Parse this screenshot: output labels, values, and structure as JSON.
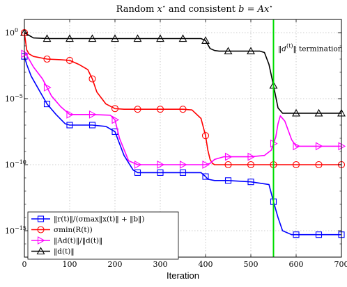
{
  "chart_data": {
    "type": "line",
    "title": "Random x* and consistent b = Ax*",
    "xlabel": "Iteration",
    "ylabel": "",
    "xlim": [
      0,
      700
    ],
    "ylim_log10": [
      -17,
      1
    ],
    "y_scale": "log",
    "grid": true,
    "legend_position": "bottom-left",
    "x_ticks": [
      0,
      100,
      200,
      300,
      400,
      500,
      600,
      700
    ],
    "x_tick_labels": [
      "0",
      "100",
      "200",
      "300",
      "400",
      "500",
      "600",
      "700"
    ],
    "y_ticks_log10": [
      0,
      -5,
      -10,
      -15
    ],
    "y_tick_labels": [
      "10^0",
      "10^-5",
      "10^-10",
      "10^-15"
    ],
    "vertical_line": {
      "x": 550,
      "color": "#00dd00"
    },
    "annotation": {
      "text": "‖d(t)‖ termination",
      "x": 560,
      "y_log10": -1.4
    },
    "series": [
      {
        "name": "‖r(t)‖/(σmax‖x(t)‖ + ‖b‖)",
        "color": "#0000ff",
        "marker": "square",
        "x": [
          0,
          5,
          15,
          30,
          50,
          70,
          90,
          100,
          150,
          180,
          200,
          220,
          240,
          250,
          300,
          350,
          390,
          400,
          405,
          420,
          450,
          500,
          540,
          550,
          560,
          570,
          590,
          600,
          650,
          700
        ],
        "y_log10": [
          -1.8,
          -2.4,
          -3.3,
          -4.2,
          -5.4,
          -6.2,
          -6.9,
          -7.0,
          -7.0,
          -7.1,
          -7.5,
          -9.3,
          -10.4,
          -10.6,
          -10.6,
          -10.6,
          -10.6,
          -10.9,
          -11.1,
          -11.2,
          -11.2,
          -11.3,
          -11.5,
          -12.8,
          -14.0,
          -15.0,
          -15.3,
          -15.3,
          -15.3,
          -15.3
        ]
      },
      {
        "name": "σmin(R(t))",
        "color": "#ff0000",
        "marker": "circle",
        "x": [
          0,
          5,
          10,
          20,
          50,
          80,
          100,
          120,
          140,
          150,
          160,
          180,
          200,
          220,
          250,
          300,
          350,
          370,
          390,
          400,
          405,
          410,
          415,
          420,
          450,
          500,
          550,
          600,
          650,
          700
        ],
        "y_log10": [
          0,
          -1.3,
          -1.6,
          -1.8,
          -2.0,
          -2.05,
          -2.1,
          -2.4,
          -2.8,
          -3.5,
          -4.5,
          -5.4,
          -5.75,
          -5.8,
          -5.8,
          -5.8,
          -5.8,
          -5.85,
          -6.5,
          -7.8,
          -8.9,
          -9.6,
          -9.9,
          -10.0,
          -10.0,
          -10.0,
          -10.0,
          -10.0,
          -10.0,
          -10.0
        ]
      },
      {
        "name": "‖Ad(t)‖/‖d(t)‖",
        "color": "#ff00ff",
        "marker": "triangle-right",
        "x": [
          0,
          5,
          10,
          20,
          40,
          60,
          80,
          100,
          150,
          190,
          200,
          210,
          230,
          250,
          300,
          350,
          400,
          410,
          420,
          440,
          500,
          530,
          545,
          555,
          560,
          565,
          575,
          590,
          600,
          650,
          700
        ],
        "y_log10": [
          -1.6,
          -1.7,
          -2.0,
          -2.6,
          -3.5,
          -4.8,
          -5.6,
          -6.2,
          -6.2,
          -6.25,
          -6.6,
          -8.0,
          -9.7,
          -10.0,
          -10.0,
          -10.0,
          -10.0,
          -9.9,
          -9.6,
          -9.4,
          -9.4,
          -9.3,
          -8.9,
          -7.9,
          -6.9,
          -6.3,
          -6.7,
          -8.1,
          -8.6,
          -8.6,
          -8.6
        ]
      },
      {
        "name": "‖d(t)‖",
        "color": "#000000",
        "marker": "triangle-up",
        "x": [
          0,
          10,
          20,
          50,
          100,
          150,
          200,
          250,
          300,
          350,
          390,
          400,
          405,
          410,
          420,
          430,
          450,
          500,
          520,
          530,
          540,
          550,
          560,
          570,
          600,
          650,
          700
        ],
        "y_log10": [
          0,
          -0.2,
          -0.4,
          -0.45,
          -0.45,
          -0.45,
          -0.45,
          -0.45,
          -0.45,
          -0.45,
          -0.45,
          -0.6,
          -0.9,
          -1.2,
          -1.35,
          -1.4,
          -1.4,
          -1.4,
          -1.4,
          -1.5,
          -2.4,
          -4.0,
          -5.7,
          -6.1,
          -6.1,
          -6.1,
          -6.1
        ]
      }
    ]
  }
}
